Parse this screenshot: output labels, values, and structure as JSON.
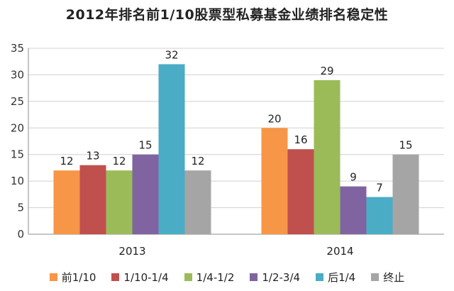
{
  "chart_data": {
    "type": "bar",
    "title": "2012年排名前1/10股票型私募基金业绩排名稳定性",
    "categories": [
      "2013",
      "2014"
    ],
    "ylim": [
      0,
      35
    ],
    "yticks": [
      0,
      5,
      10,
      15,
      20,
      25,
      30,
      35
    ],
    "grid": true,
    "legend_position": "bottom",
    "series": [
      {
        "name": "前1/10",
        "color": "#F79646",
        "values": [
          12,
          20
        ]
      },
      {
        "name": "1/10-1/4",
        "color": "#C0504D",
        "values": [
          13,
          16
        ]
      },
      {
        "name": "1/4-1/2",
        "color": "#9BBB59",
        "values": [
          12,
          29
        ]
      },
      {
        "name": "1/2-3/4",
        "color": "#8064A2",
        "values": [
          15,
          9
        ]
      },
      {
        "name": "后1/4",
        "color": "#4BACC6",
        "values": [
          32,
          7
        ]
      },
      {
        "name": "终止",
        "color": "#A5A5A5",
        "values": [
          12,
          15
        ]
      }
    ]
  }
}
